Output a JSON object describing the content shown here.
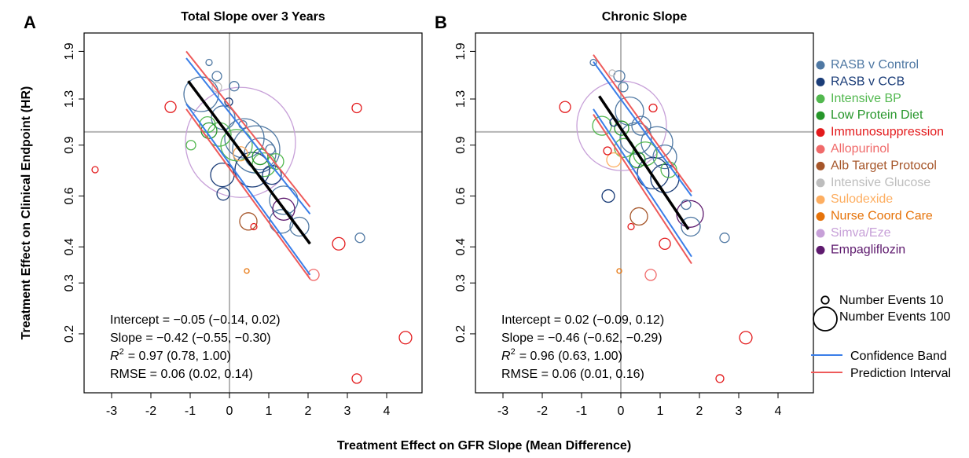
{
  "figure": {
    "x_label": "Treatment Effect on GFR Slope (Mean Difference)",
    "y_label": "Treatment Effect on Clinical Endpoint (HR)",
    "legend": [
      {
        "name": "RASB v Control",
        "color": "#4f78a3"
      },
      {
        "name": "RASB v CCB",
        "color": "#1b3d78"
      },
      {
        "name": "Intensive BP",
        "color": "#52b84f"
      },
      {
        "name": "Low Protein Diet",
        "color": "#26962a"
      },
      {
        "name": "Immunosuppression",
        "color": "#e31a1c"
      },
      {
        "name": "Allopurinol",
        "color": "#f06a6a"
      },
      {
        "name": "Alb Target Protocol",
        "color": "#a6562a"
      },
      {
        "name": "Intensive Glucose",
        "color": "#bdbdbd"
      },
      {
        "name": "Sulodexide",
        "color": "#fdae61"
      },
      {
        "name": "Nurse Coord Care",
        "color": "#e6730a"
      },
      {
        "name": "Simva/Eze",
        "color": "#c7a0d8"
      },
      {
        "name": "Empagliflozin",
        "color": "#5e1a6e"
      }
    ],
    "size_legend": [
      {
        "label": "Number Events 10",
        "events": 10
      },
      {
        "label": "Number Events 100",
        "events": 100
      }
    ],
    "line_legend": [
      {
        "name": "Confidence Band",
        "color": "#3a7ee8"
      },
      {
        "name": "Prediction Interval",
        "color": "#ee5a5a"
      }
    ],
    "fit_color": "#000000"
  },
  "chart_data": [
    {
      "type": "bubble",
      "panel": "A",
      "title": "Total Slope over 3 Years",
      "xlim": [
        -3.7,
        4.9
      ],
      "xticks": [
        -3,
        -2,
        -1,
        0,
        1,
        2,
        3,
        4
      ],
      "ylim": [
        0.125,
        2.2
      ],
      "yticks": [
        0.2,
        0.3,
        0.4,
        0.6,
        0.9,
        1.3,
        1.9
      ],
      "y_log": true,
      "hline": 1,
      "vline": 0,
      "series": [
        {
          "x": [
            -0.52,
            -0.32,
            0.12,
            -0.72,
            -0.16,
            0.34,
            0.38,
            0.78,
            1.04,
            1.38,
            1.32,
            1.78,
            3.32,
            0.68
          ],
          "values": [
            1.74,
            1.56,
            1.44,
            1.35,
            1.12,
            1.06,
            0.95,
            0.84,
            0.87,
            0.58,
            0.49,
            0.47,
            0.43,
            0.87
          ],
          "sizes": [
            7,
            16,
            16,
            215,
            100,
            11,
            278,
            178,
            16,
            144,
            100,
            64,
            16,
            400
          ]
        },
        {
          "x": [
            -0.16,
            -0.18,
            0.58,
            1.08,
            -0.02
          ],
          "values": [
            0.61,
            0.71,
            0.74,
            0.71,
            1.27
          ],
          "sizes": [
            28,
            100,
            215,
            64,
            11
          ]
        },
        {
          "x": [
            -0.98,
            -0.56,
            -0.26,
            0.18,
            0.88,
            1.18
          ],
          "values": [
            0.9,
            1.06,
            0.98,
            0.9,
            0.77,
            0.79
          ],
          "sizes": [
            16,
            44,
            100,
            178,
            100,
            44
          ]
        },
        {
          "x": [
            -0.52,
            0.78
          ],
          "values": [
            1.01,
            0.82
          ],
          "sizes": [
            44,
            44
          ]
        },
        {
          "x": [
            -3.42,
            -1.5,
            3.24,
            2.78,
            3.24,
            4.48,
            0.62
          ],
          "values": [
            0.74,
            1.22,
            1.21,
            0.41,
            0.14,
            0.194,
            0.47
          ],
          "sizes": [
            7,
            22,
            16,
            28,
            16,
            28,
            7
          ]
        },
        {
          "x": [
            2.14
          ],
          "values": [
            0.32
          ],
          "sizes": [
            22
          ]
        },
        {
          "x": [
            0.48
          ],
          "values": [
            0.49
          ],
          "sizes": [
            54
          ]
        },
        {
          "x": [
            -0.32
          ],
          "values": [
            1.43
          ],
          "sizes": [
            16
          ]
        },
        {
          "x": [
            0.28
          ],
          "values": [
            0.84
          ],
          "sizes": [
            36
          ]
        },
        {
          "x": [
            0.44
          ],
          "values": [
            0.33
          ],
          "sizes": [
            4
          ]
        },
        {
          "x": [
            0.28
          ],
          "values": [
            0.92
          ],
          "sizes": [
            2178
          ]
        },
        {
          "x": [
            1.38
          ],
          "values": [
            0.54
          ],
          "sizes": [
            87
          ]
        }
      ],
      "fit": {
        "x": [
          -1.05,
          2.05
        ],
        "values": [
          1.5,
          0.41
        ]
      },
      "confidence_band": [
        {
          "x": [
            -1.1,
            2.05
          ],
          "values": [
            1.8,
            0.52
          ]
        },
        {
          "x": [
            -1.1,
            2.05
          ],
          "values": [
            1.25,
            0.32
          ]
        }
      ],
      "prediction_interval": [
        {
          "x": [
            -1.1,
            2.05
          ],
          "values": [
            1.9,
            0.55
          ]
        },
        {
          "x": [
            -1.1,
            2.05
          ],
          "values": [
            1.2,
            0.31
          ]
        }
      ],
      "stats": {
        "intercept": "Intercept = −0.05 (−0.14, 0.02)",
        "slope": "Slope = −0.42 (−0.55, −0.30)",
        "r2_symbol": "R",
        "r2_sup": "2",
        "r2_text": "= 0.97 (0.78, 1.00)",
        "rmse": "RMSE = 0.06 (0.02, 0.14)"
      }
    },
    {
      "type": "bubble",
      "panel": "B",
      "title": "Chronic Slope",
      "xlim": [
        -3.7,
        4.9
      ],
      "xticks": [
        -3,
        -2,
        -1,
        0,
        1,
        2,
        3,
        4
      ],
      "ylim": [
        0.125,
        2.2
      ],
      "yticks": [
        0.2,
        0.3,
        0.4,
        0.6,
        0.9,
        1.3,
        1.9
      ],
      "y_log": true,
      "hline": 1,
      "vline": 0,
      "series": [
        {
          "x": [
            -0.7,
            -0.04,
            0.06,
            0.22,
            0.52,
            0.92,
            1.12,
            1.66,
            1.78,
            2.64,
            0.38
          ],
          "values": [
            1.74,
            1.56,
            1.43,
            1.18,
            1.05,
            0.92,
            0.82,
            0.56,
            0.47,
            0.43,
            0.95
          ],
          "sizes": [
            7,
            22,
            16,
            144,
            64,
            178,
            100,
            16,
            64,
            16,
            178
          ]
        },
        {
          "x": [
            -0.32,
            -0.18,
            0.82,
            1.12
          ],
          "values": [
            0.6,
            1.08,
            0.72,
            0.69
          ],
          "sizes": [
            28,
            11,
            178,
            144
          ]
        },
        {
          "x": [
            -0.48,
            0.08,
            0.62,
            1.22
          ],
          "values": [
            1.05,
            0.88,
            0.84,
            0.74
          ],
          "sizes": [
            64,
            64,
            100,
            44
          ]
        },
        {
          "x": [
            0.02,
            0.42
          ],
          "values": [
            1.03,
            0.8
          ],
          "sizes": [
            36,
            44
          ]
        },
        {
          "x": [
            -1.42,
            -0.34,
            0.82,
            1.12,
            0.26,
            3.18,
            2.52
          ],
          "values": [
            1.22,
            0.86,
            1.21,
            0.41,
            0.47,
            0.194,
            0.14
          ],
          "sizes": [
            22,
            11,
            11,
            22,
            7,
            28,
            11
          ]
        },
        {
          "x": [
            0.76
          ],
          "values": [
            0.32
          ],
          "sizes": [
            22
          ]
        },
        {
          "x": [
            0.46
          ],
          "values": [
            0.51
          ],
          "sizes": [
            54
          ]
        },
        {
          "x": [
            -0.22
          ],
          "values": [
            1.6
          ],
          "sizes": [
            7
          ]
        },
        {
          "x": [
            -0.18
          ],
          "values": [
            0.8
          ],
          "sizes": [
            36
          ]
        },
        {
          "x": [
            -0.04
          ],
          "values": [
            0.33
          ],
          "sizes": [
            4
          ]
        },
        {
          "x": [
            0.02
          ],
          "values": [
            1.05
          ],
          "sizes": [
            1444
          ]
        },
        {
          "x": [
            1.76
          ],
          "values": [
            0.52
          ],
          "sizes": [
            128
          ]
        }
      ],
      "fit": {
        "x": [
          -0.55,
          1.72
        ],
        "values": [
          1.33,
          0.46
        ]
      },
      "confidence_band": [
        {
          "x": [
            -0.7,
            1.8
          ],
          "values": [
            1.75,
            0.6
          ]
        },
        {
          "x": [
            -0.7,
            1.8
          ],
          "values": [
            1.2,
            0.37
          ]
        }
      ],
      "prediction_interval": [
        {
          "x": [
            -0.7,
            1.8
          ],
          "values": [
            1.85,
            0.62
          ]
        },
        {
          "x": [
            -0.7,
            1.8
          ],
          "values": [
            1.15,
            0.35
          ]
        }
      ],
      "stats": {
        "intercept": "Intercept = 0.02 (−0.09, 0.12)",
        "slope": "Slope = −0.46 (−0.62, −0.29)",
        "r2_symbol": "R",
        "r2_sup": "2",
        "r2_text": "= 0.96 (0.63, 1.00)",
        "rmse": "RMSE = 0.06 (0.01, 0.16)"
      }
    }
  ]
}
